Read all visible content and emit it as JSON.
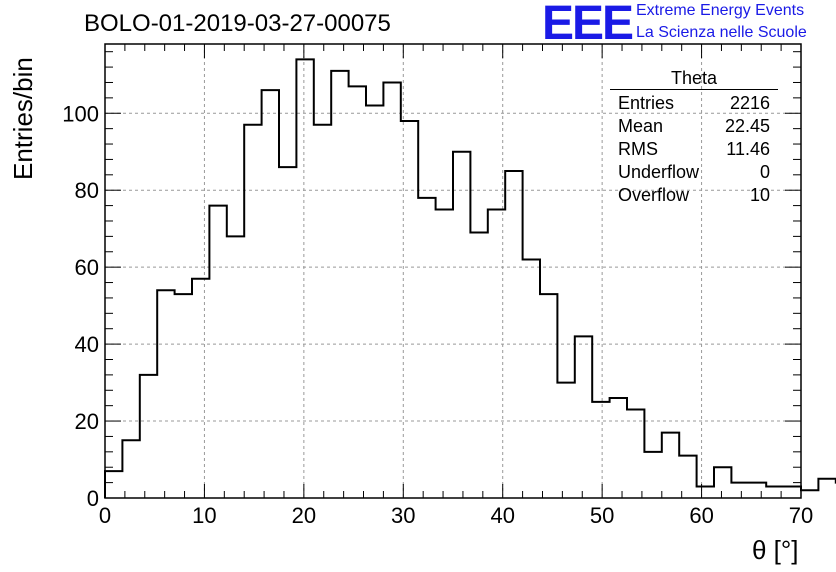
{
  "header": {
    "title": "BOLO-01-2019-03-27-00075",
    "logo": "EEE",
    "logo_line1": "Extreme Energy Events",
    "logo_line2": "La Scienza nelle Scuole"
  },
  "stats": {
    "title": "Theta",
    "rows": [
      {
        "label": "Entries",
        "value": "2216"
      },
      {
        "label": "Mean",
        "value": "22.45"
      },
      {
        "label": "RMS",
        "value": "11.46"
      },
      {
        "label": "Underflow",
        "value": "0"
      },
      {
        "label": "Overflow",
        "value": "10"
      }
    ]
  },
  "chart_data": {
    "type": "histogram",
    "xlabel": "θ [°]",
    "ylabel": "Entries/bin",
    "xlim": [
      0,
      70
    ],
    "ylim": [
      0,
      118
    ],
    "bin_width": 1.75,
    "x_ticks": [
      0,
      10,
      20,
      30,
      40,
      50,
      60,
      70
    ],
    "y_ticks": [
      0,
      20,
      40,
      60,
      80,
      100
    ],
    "grid": true,
    "values": [
      7,
      15,
      32,
      54,
      53,
      57,
      76,
      68,
      97,
      106,
      86,
      114,
      97,
      111,
      107,
      102,
      108,
      98,
      78,
      75,
      90,
      69,
      75,
      85,
      62,
      53,
      30,
      42,
      25,
      26,
      23,
      12,
      17,
      11,
      3,
      8,
      4,
      4,
      3,
      3,
      2,
      5,
      4,
      4,
      0,
      1,
      1,
      2,
      5,
      1
    ]
  },
  "colors": {
    "line": "#000000",
    "grid": "#999999",
    "logo": "#1a1ae6"
  }
}
